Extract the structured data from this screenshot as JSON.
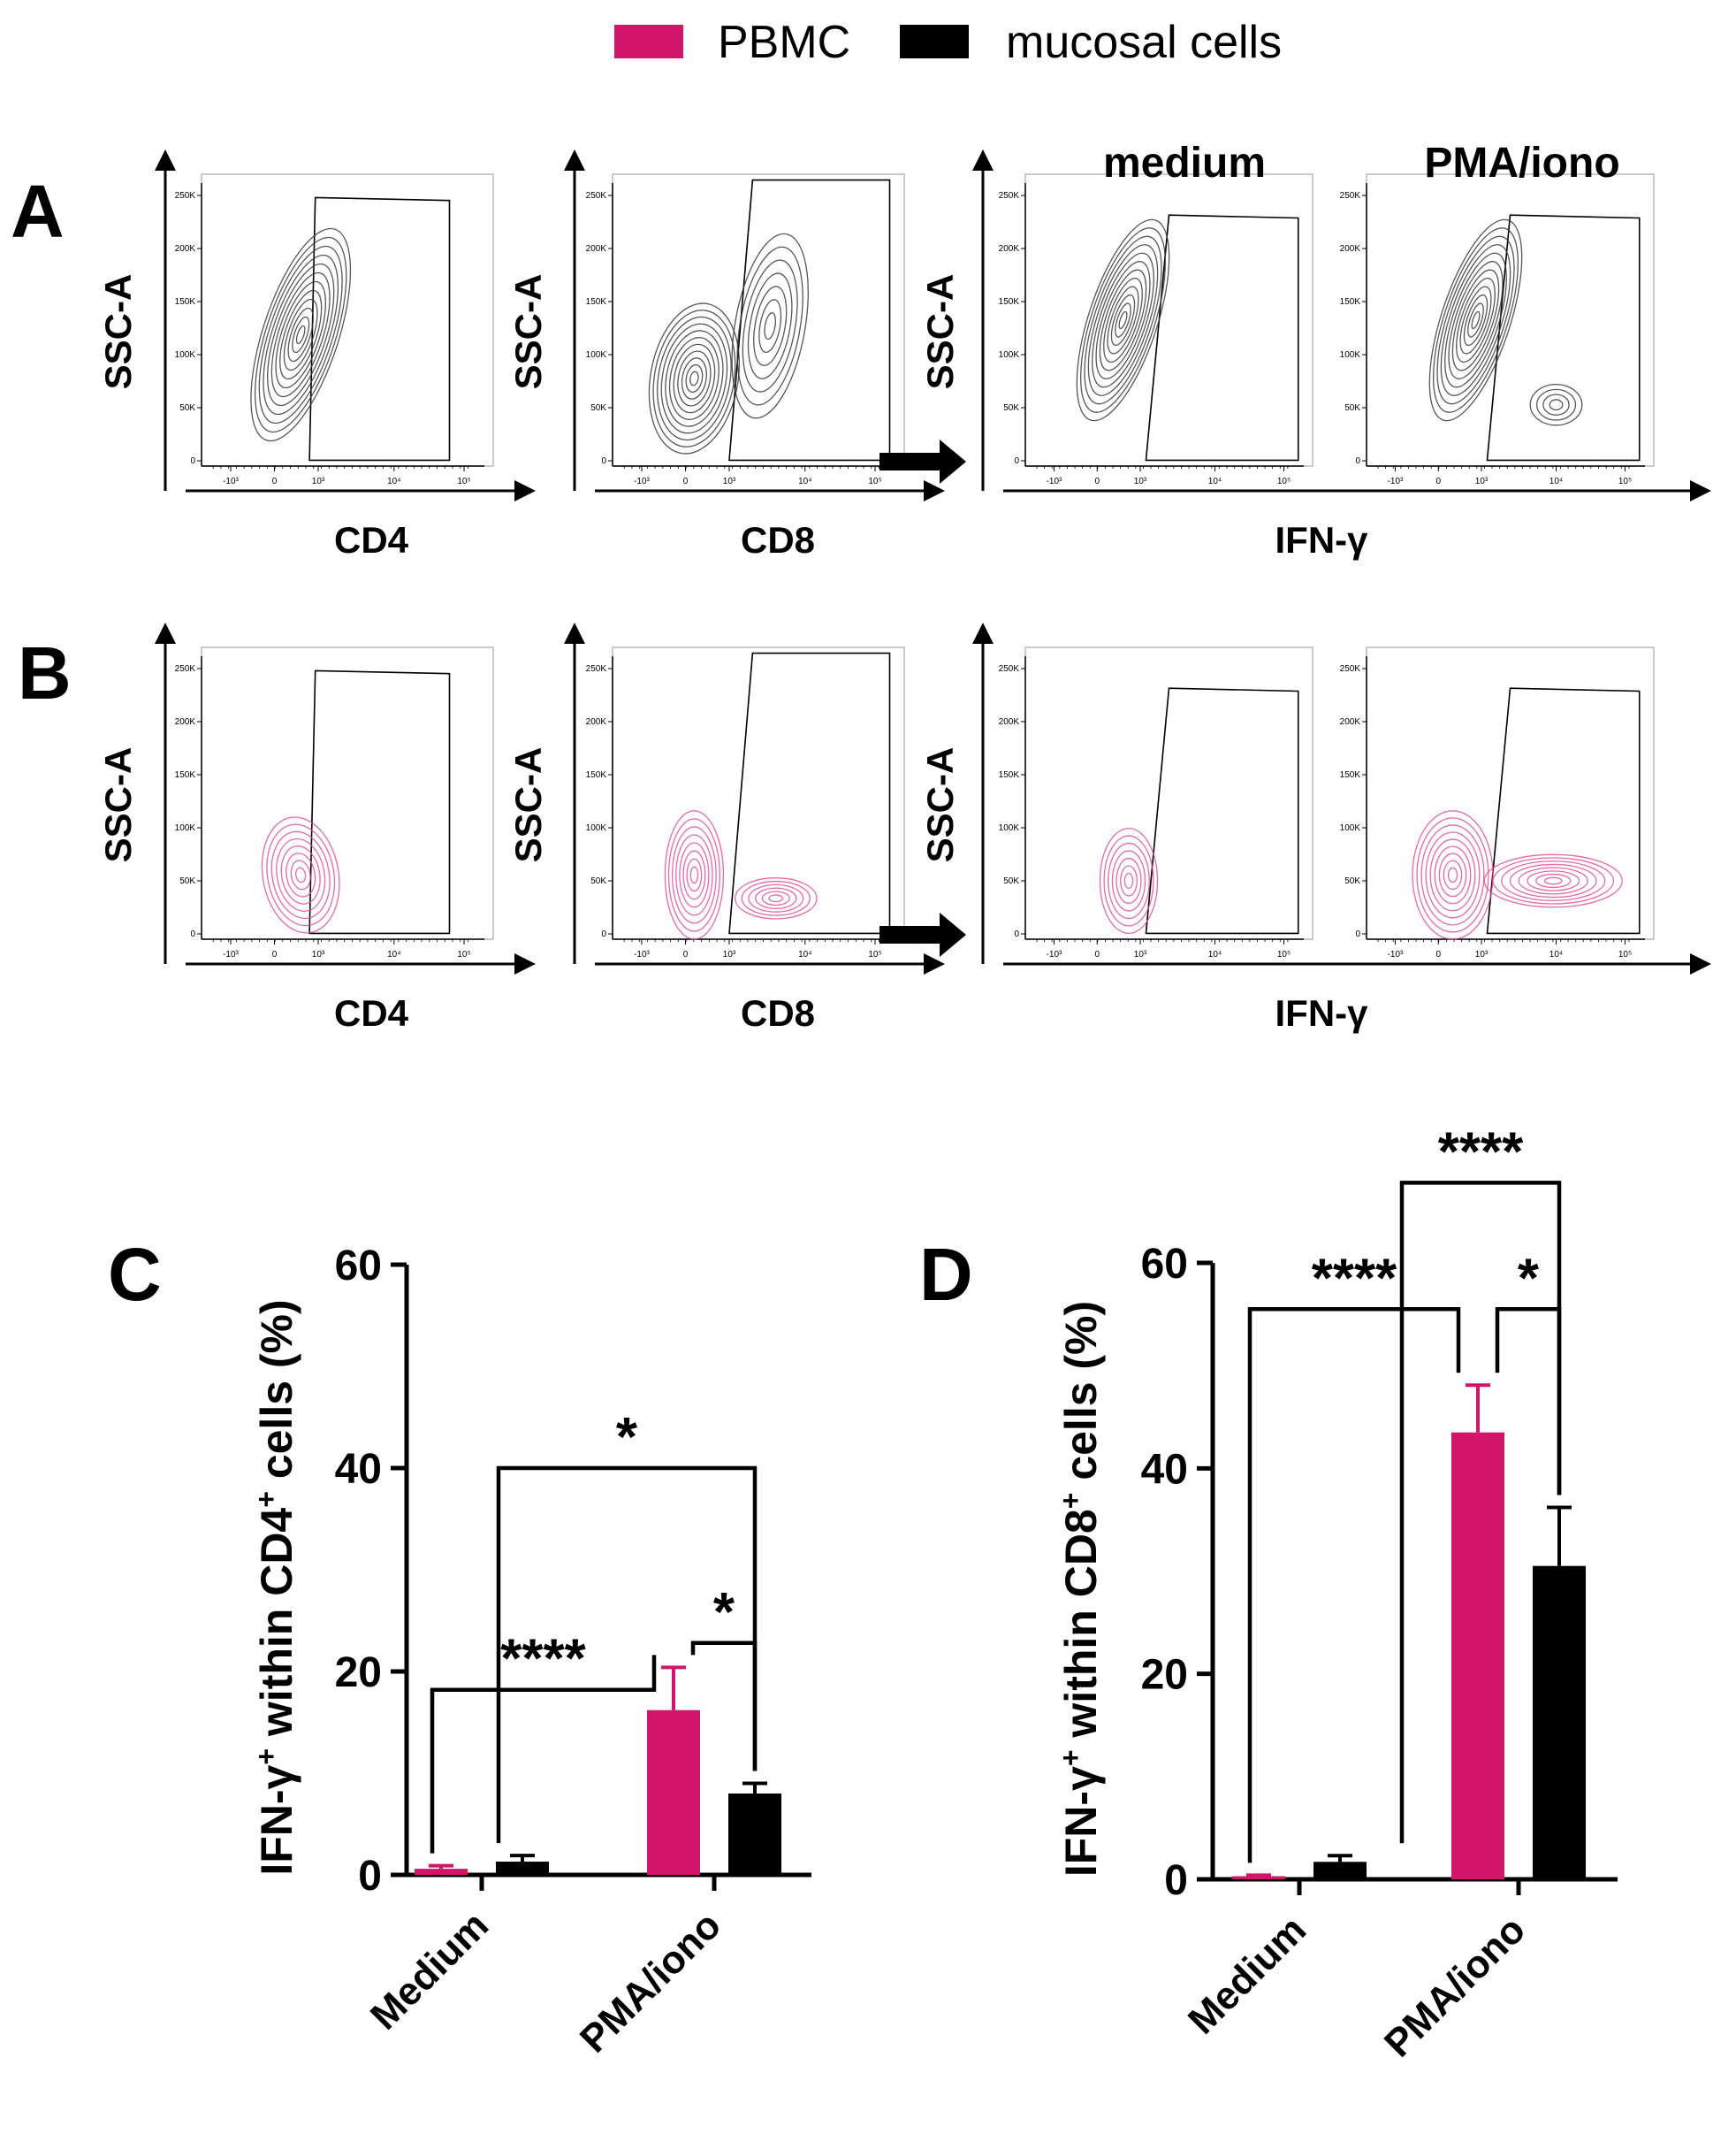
{
  "colors": {
    "pbmc": "#D0156A",
    "mucosal": "#000000",
    "contour_gray": "#3a3a3a",
    "contour_pink": "#E0509A"
  },
  "legend": {
    "pbmc_label": "PBMC",
    "mucosal_label": "mucosal cells"
  },
  "panel_letters": {
    "a": "A",
    "b": "B",
    "c": "C",
    "d": "D"
  },
  "flow": {
    "y_label": "SSC-A",
    "x_cd4": "CD4",
    "x_cd8": "CD8",
    "x_ifn": "IFN-γ",
    "medium_title": "medium",
    "pma_title": "PMA/iono",
    "y_ticks": [
      "0",
      "50K",
      "100K",
      "150K",
      "200K",
      "250K"
    ],
    "x_ticks": [
      "-10³",
      "0",
      "10³",
      "10⁴",
      "10⁵"
    ]
  },
  "chart_data": [
    {
      "type": "bar",
      "panel": "C",
      "categories": [
        "Medium",
        "PMA/iono"
      ],
      "series": [
        {
          "name": "PBMC",
          "values": [
            0.6,
            16.2
          ],
          "errors": [
            0.3,
            4.2
          ]
        },
        {
          "name": "mucosal cells",
          "values": [
            1.3,
            8.0
          ],
          "errors": [
            0.6,
            1.0
          ]
        }
      ],
      "ylabel_pre": "IFN-γ",
      "ylabel_sup1": "+",
      "ylabel_mid": " within CD4",
      "ylabel_sup2": "+",
      "ylabel_post": " cells (%)",
      "ylim": [
        0,
        60
      ],
      "yticks": [
        "0",
        "20",
        "40",
        "60"
      ],
      "significance": [
        {
          "label": "****",
          "from": "Medium PBMC",
          "to": "PMA/iono PBMC"
        },
        {
          "label": "*",
          "from": "PMA/iono PBMC",
          "to": "PMA/iono mucosal cells"
        },
        {
          "label": "*",
          "from": "Medium mucosal cells",
          "to": "PMA/iono mucosal cells"
        }
      ]
    },
    {
      "type": "bar",
      "panel": "D",
      "categories": [
        "Medium",
        "PMA/iono"
      ],
      "series": [
        {
          "name": "PBMC",
          "values": [
            0.3,
            43.5
          ],
          "errors": [
            0.1,
            4.6
          ]
        },
        {
          "name": "mucosal cells",
          "values": [
            1.7,
            30.5
          ],
          "errors": [
            0.6,
            5.7
          ]
        }
      ],
      "ylabel_pre": "IFN-γ",
      "ylabel_sup1": "+",
      "ylabel_mid": " within CD8",
      "ylabel_sup2": "+",
      "ylabel_post": " cells (%)",
      "ylim": [
        0,
        60
      ],
      "yticks": [
        "0",
        "20",
        "40",
        "60"
      ],
      "significance": [
        {
          "label": "****",
          "from": "Medium PBMC",
          "to": "PMA/iono PBMC"
        },
        {
          "label": "*",
          "from": "PMA/iono PBMC",
          "to": "PMA/iono mucosal cells"
        },
        {
          "label": "****",
          "from": "Medium mucosal cells",
          "to": "PMA/iono mucosal cells"
        }
      ]
    }
  ]
}
